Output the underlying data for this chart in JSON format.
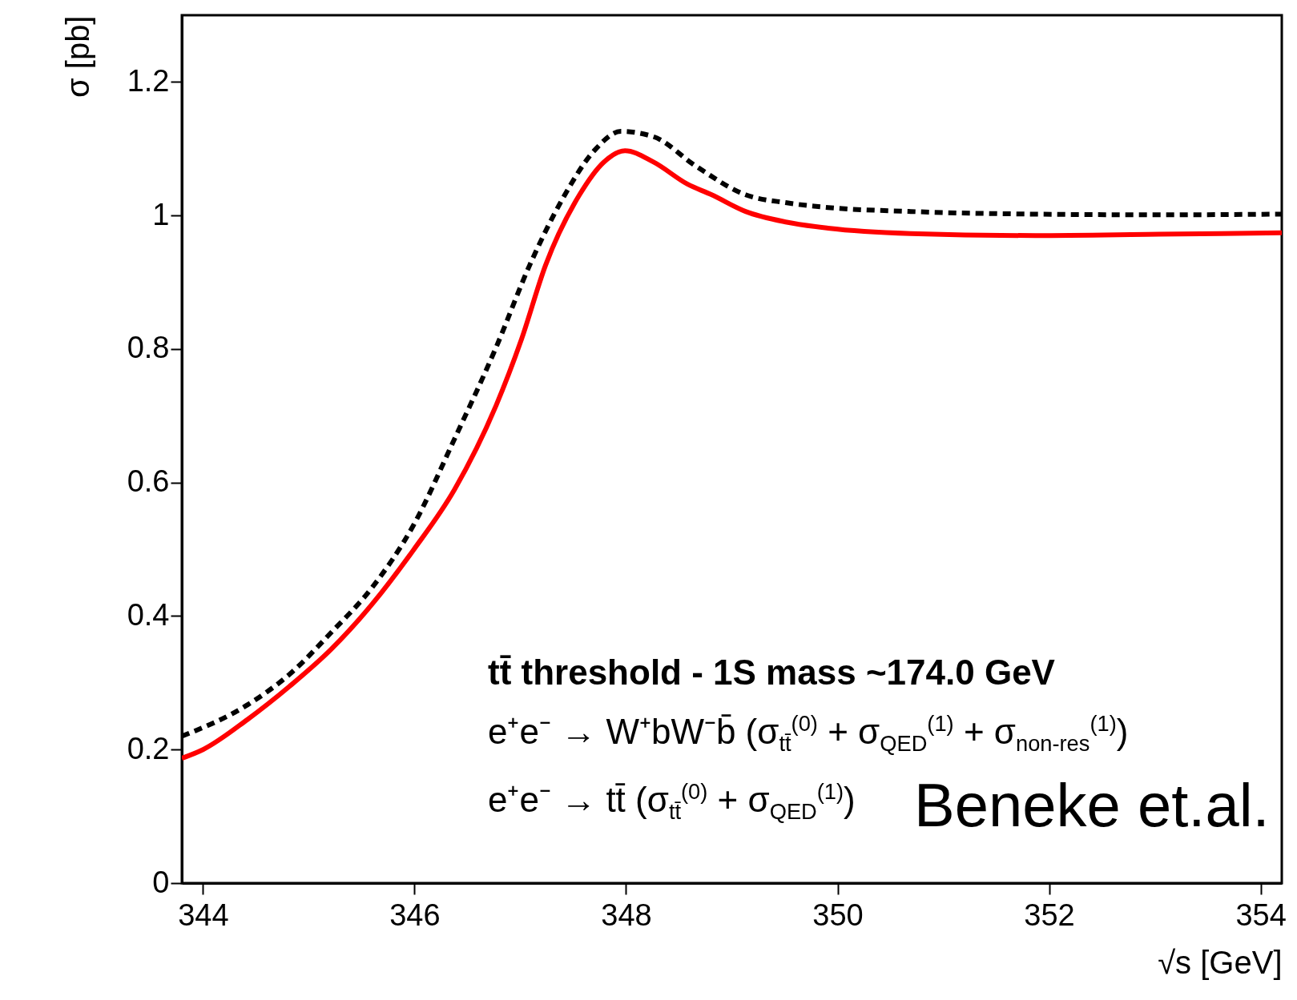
{
  "chart_data": {
    "type": "line",
    "xlabel": "√s [GeV]",
    "ylabel": "σ [pb]",
    "xlim": [
      343.8,
      354.2
    ],
    "xticks": [
      344,
      346,
      348,
      350,
      352,
      354
    ],
    "ylim": [
      0,
      1.3
    ],
    "yticks": [
      0,
      0.2,
      0.4,
      0.6,
      0.8,
      1,
      1.2
    ],
    "grid": false,
    "series": [
      {
        "color": "#000000",
        "line_style": "dashed",
        "x": [
          343.8,
          344.42,
          344.82,
          345.21,
          345.6,
          345.99,
          346.38,
          346.77,
          347.09,
          347.4,
          347.71,
          347.95,
          348.26,
          348.66,
          349.13,
          349.52,
          349.91,
          350.69,
          351.87,
          353.04,
          354.2
        ],
        "values": [
          0.22,
          0.267,
          0.313,
          0.375,
          0.443,
          0.536,
          0.666,
          0.802,
          0.926,
          1.025,
          1.099,
          1.126,
          1.118,
          1.074,
          1.031,
          1.019,
          1.012,
          1.006,
          1.002,
          1.001,
          1.002
        ]
      },
      {
        "color": "#ff0000",
        "line_style": "solid",
        "x": [
          343.8,
          344.0,
          344.42,
          344.82,
          345.21,
          345.6,
          345.99,
          346.38,
          346.77,
          347.01,
          347.24,
          347.56,
          347.79,
          347.99,
          348.26,
          348.58,
          348.81,
          349.13,
          349.52,
          349.91,
          350.69,
          351.87,
          353.04,
          354.2
        ],
        "values": [
          0.187,
          0.2,
          0.245,
          0.295,
          0.35,
          0.418,
          0.499,
          0.59,
          0.715,
          0.814,
          0.926,
          1.031,
          1.08,
          1.097,
          1.08,
          1.047,
          1.031,
          1.006,
          0.99,
          0.981,
          0.973,
          0.97,
          0.972,
          0.974
        ]
      }
    ],
    "annotations": [
      "tt̄ threshold - 1S mass ~174.0 GeV",
      "e⁺e⁻ → W⁺bW⁻b̄ (σ$_{tt̄}$$^{(0)}$ + σ$_{QED}$$^{(1)}$ + σ$_{non-res}$$^{(1)}$)",
      "e⁺e⁻ → tt̄ (σ$_{tt̄}$$^{(0)}$ + σ$_{QED}$$^{(1)}$)",
      "Beneke et.al."
    ]
  }
}
